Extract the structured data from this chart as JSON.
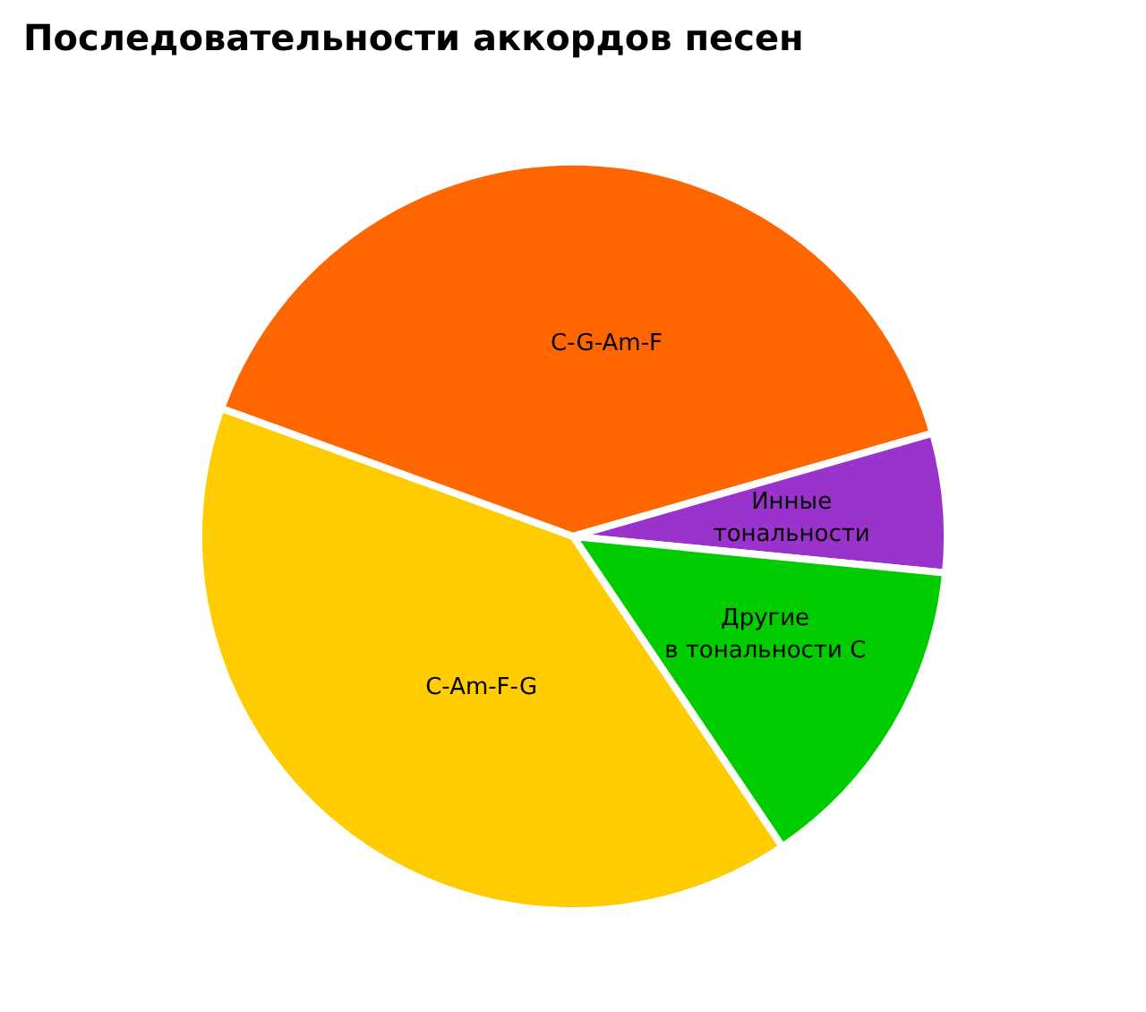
{
  "chart_data": {
    "type": "pie",
    "title": "Последовательности аккордов песен",
    "categories": [
      "C-G-Am-F",
      "Инные\nтональности",
      "Другие\nв тональности C",
      "C-Am-F-G"
    ],
    "values": [
      40,
      6,
      14,
      40
    ],
    "colors": [
      "#ff6600",
      "#9933cc",
      "#00cc00",
      "#ffcc00"
    ],
    "legend": false
  }
}
